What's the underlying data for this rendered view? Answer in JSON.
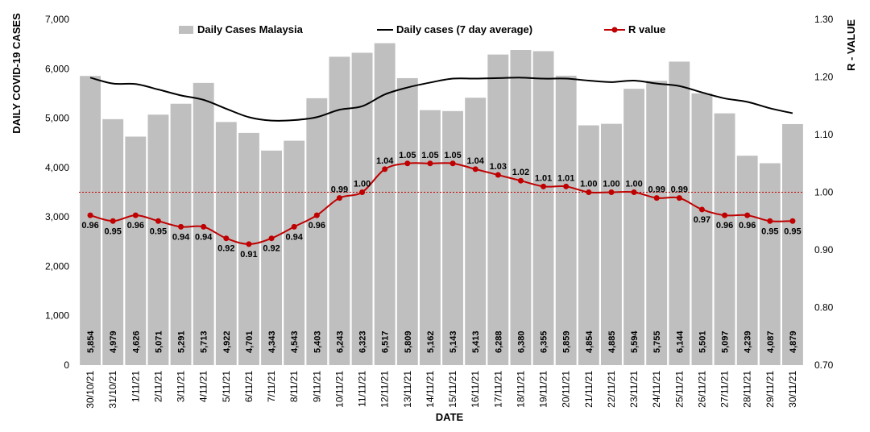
{
  "chart_data": {
    "type": "bar",
    "title": "",
    "xlabel": "DATE",
    "ylabel": "DAILY COVID-19 CASES",
    "y2label": "R - VALUE",
    "ylim": [
      0,
      7000
    ],
    "y2lim": [
      0.7,
      1.3
    ],
    "y_ticks": [
      "0",
      "1,000",
      "2,000",
      "3,000",
      "4,000",
      "5,000",
      "6,000",
      "7,000"
    ],
    "y2_ticks": [
      "0.70",
      "0.80",
      "0.90",
      "1.00",
      "1.10",
      "1.20",
      "1.30"
    ],
    "legend_position": "top",
    "reference_line": 1.0,
    "categories": [
      "30/10/21",
      "31/10/21",
      "1/11/21",
      "2/11/21",
      "3/11/21",
      "4/11/21",
      "5/11/21",
      "6/11/21",
      "7/11/21",
      "8/11/21",
      "9/11/21",
      "10/11/21",
      "11/11/21",
      "12/11/21",
      "13/11/21",
      "14/11/21",
      "15/11/21",
      "16/11/21",
      "17/11/21",
      "18/11/21",
      "19/11/21",
      "20/11/21",
      "21/11/21",
      "22/11/21",
      "23/11/21",
      "24/11/21",
      "25/11/21",
      "26/11/21",
      "27/11/21",
      "28/11/21",
      "29/11/21",
      "30/11/21"
    ],
    "series": [
      {
        "name": "Daily Cases Malaysia",
        "type": "bar",
        "color": "#bfbfbf",
        "values": [
          5854,
          4979,
          4626,
          5071,
          5291,
          5713,
          4922,
          4701,
          4343,
          4543,
          5403,
          6243,
          6323,
          6517,
          5809,
          5162,
          5143,
          5413,
          6288,
          6380,
          6355,
          5859,
          4854,
          4885,
          5594,
          5755,
          6144,
          5501,
          5097,
          4239,
          4087,
          4879
        ],
        "labels": [
          "5,854",
          "4,979",
          "4,626",
          "5,071",
          "5,291",
          "5,713",
          "4,922",
          "4,701",
          "4,343",
          "4,543",
          "5,403",
          "6,243",
          "6,323",
          "6,517",
          "5,809",
          "5,162",
          "5,143",
          "5,413",
          "6,288",
          "6,380",
          "6,355",
          "5,859",
          "4,854",
          "4,885",
          "5,594",
          "5,755",
          "6,144",
          "5,501",
          "5,097",
          "4,239",
          "4,087",
          "4,879"
        ]
      },
      {
        "name": "Daily cases (7 day average)",
        "type": "line",
        "color": "#000000",
        "values": [
          5820,
          5700,
          5690,
          5580,
          5460,
          5370,
          5190,
          5020,
          4950,
          4960,
          5020,
          5170,
          5240,
          5480,
          5620,
          5720,
          5800,
          5800,
          5810,
          5820,
          5800,
          5800,
          5760,
          5730,
          5760,
          5700,
          5650,
          5520,
          5400,
          5330,
          5200,
          5100
        ]
      },
      {
        "name": "R value",
        "type": "line",
        "axis": "right",
        "color": "#c00000",
        "values": [
          0.96,
          0.95,
          0.96,
          0.95,
          0.94,
          0.94,
          0.92,
          0.91,
          0.92,
          0.94,
          0.96,
          0.99,
          1.0,
          1.04,
          1.05,
          1.05,
          1.05,
          1.04,
          1.03,
          1.02,
          1.01,
          1.01,
          1.0,
          1.0,
          1.0,
          0.99,
          0.99,
          0.97,
          0.96,
          0.96,
          0.95,
          0.95
        ],
        "labels": [
          "0.96",
          "0.95",
          "0.96",
          "0.95",
          "0.94",
          "0.94",
          "0.92",
          "0.91",
          "0.92",
          "0.94",
          "0.96",
          "0.99",
          "1.00",
          "1.04",
          "1.05",
          "1.05",
          "1.05",
          "1.04",
          "1.03",
          "1.02",
          "1.01",
          "1.01",
          "1.00",
          "1.00",
          "1.00",
          "0.99",
          "0.99",
          "0.97",
          "0.96",
          "0.96",
          "0.95",
          "0.95"
        ]
      }
    ]
  }
}
